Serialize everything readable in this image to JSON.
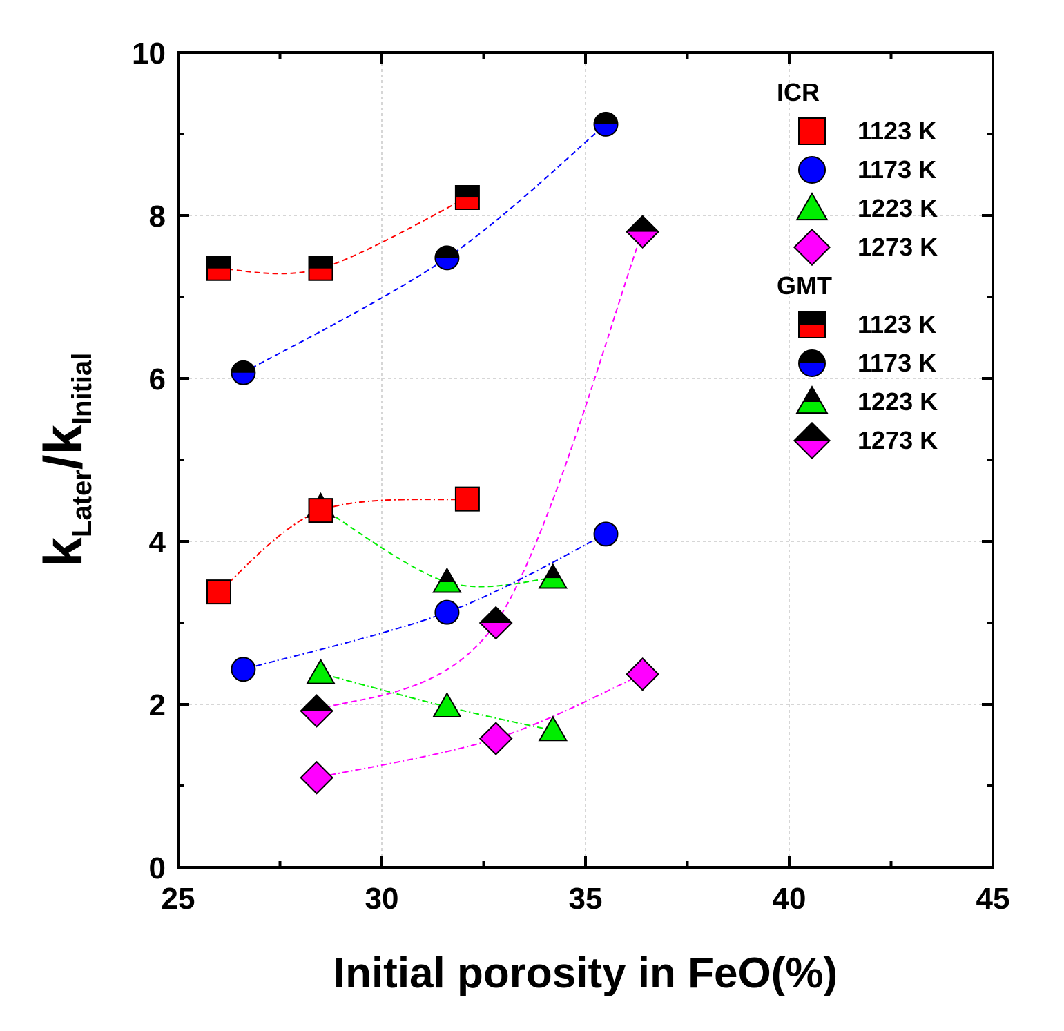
{
  "chart_data": {
    "type": "scatter",
    "title": "",
    "xlabel": "Initial porosity in FeO(%)",
    "ylabel": {
      "main": "k",
      "sub1": "Later",
      "slash": "/k",
      "sub2": "Initial"
    },
    "xlim": [
      25,
      45
    ],
    "ylim": [
      0,
      10
    ],
    "xticks": [
      25,
      30,
      35,
      40,
      45
    ],
    "yticks": [
      0,
      2,
      4,
      6,
      8,
      10
    ],
    "grid": true,
    "legend_position": "top-right",
    "legend_groups": [
      {
        "label": "ICR",
        "entries": [
          "1123 K",
          "1173 K",
          "1223 K",
          "1273 K"
        ]
      },
      {
        "label": "GMT",
        "entries": [
          "1123 K",
          "1173 K",
          "1223 K",
          "1273 K"
        ]
      }
    ],
    "series": [
      {
        "name": "1123 K",
        "group": "GMT",
        "marker": "square",
        "color": "#ff0000",
        "half": true,
        "points": [
          [
            26,
            7.35
          ],
          [
            28.5,
            7.35
          ],
          [
            32.1,
            8.22
          ]
        ],
        "fit": "dash"
      },
      {
        "name": "1173 K",
        "group": "GMT",
        "marker": "circle",
        "color": "#0000ff",
        "half": true,
        "points": [
          [
            26.6,
            6.07
          ],
          [
            31.6,
            7.48
          ],
          [
            35.5,
            9.12
          ]
        ],
        "fit": "dash"
      },
      {
        "name": "1223 K",
        "group": "GMT",
        "marker": "triangle",
        "color": "#00ee00",
        "half": true,
        "points": [
          [
            28.5,
            4.42
          ],
          [
            31.6,
            3.5
          ],
          [
            34.2,
            3.55
          ]
        ],
        "fit": "dash"
      },
      {
        "name": "1273 K",
        "group": "GMT",
        "marker": "diamond",
        "color": "#ff00ff",
        "half": true,
        "points": [
          [
            28.4,
            1.92
          ],
          [
            32.8,
            3.0
          ],
          [
            36.4,
            7.8
          ]
        ],
        "fit": "dash"
      },
      {
        "name": "1123 K",
        "group": "ICR",
        "marker": "square",
        "color": "#ff0000",
        "half": false,
        "points": [
          [
            26,
            3.38
          ],
          [
            28.5,
            4.38
          ],
          [
            32.1,
            4.52
          ]
        ],
        "fit": "dashdot"
      },
      {
        "name": "1173 K",
        "group": "ICR",
        "marker": "circle",
        "color": "#0000ff",
        "half": false,
        "points": [
          [
            26.6,
            2.43
          ],
          [
            31.6,
            3.13
          ],
          [
            35.5,
            4.09
          ]
        ],
        "fit": "dashdot"
      },
      {
        "name": "1223 K",
        "group": "ICR",
        "marker": "triangle",
        "color": "#00ee00",
        "half": false,
        "points": [
          [
            28.5,
            2.38
          ],
          [
            31.6,
            1.97
          ],
          [
            34.2,
            1.68
          ]
        ],
        "fit": "dashdot"
      },
      {
        "name": "1273 K",
        "group": "ICR",
        "marker": "diamond",
        "color": "#ff00ff",
        "half": false,
        "points": [
          [
            28.4,
            1.1
          ],
          [
            32.8,
            1.58
          ],
          [
            36.4,
            2.37
          ]
        ],
        "fit": "dashdot"
      }
    ]
  }
}
